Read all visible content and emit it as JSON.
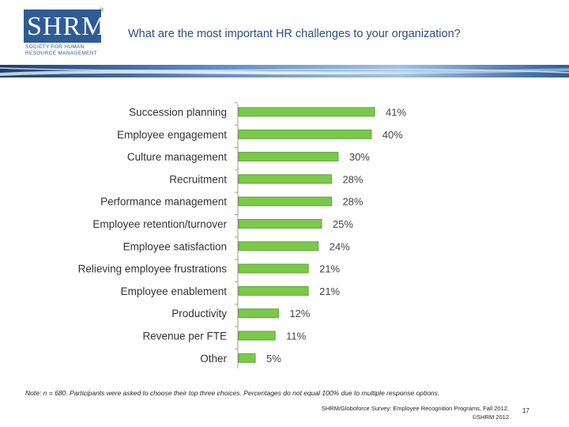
{
  "logo": {
    "letters": "SHRM",
    "registered": "®",
    "tagline": "SOCIETY FOR HUMAN\nRESOURCE MANAGEMENT"
  },
  "title": "What are the most important HR challenges to your organization?",
  "colors": {
    "bar": "#7cc84a",
    "bar_dark": "#5aa832",
    "title": "#2a4e86",
    "brand": "#2f5c94"
  },
  "chart_data": {
    "type": "bar",
    "orientation": "horizontal",
    "title": "",
    "xlabel": "",
    "ylabel": "",
    "xlim": [
      0,
      45
    ],
    "grid": false,
    "categories": [
      "Succession planning",
      "Employee engagement",
      "Culture management",
      "Recruitment",
      "Performance management",
      "Employee retention/turnover",
      "Employee satisfaction",
      "Relieving employee frustrations",
      "Employee enablement",
      "Productivity",
      "Revenue per FTE",
      "Other"
    ],
    "values": [
      41,
      40,
      30,
      28,
      28,
      25,
      24,
      21,
      21,
      12,
      11,
      5
    ],
    "value_labels": [
      "41%",
      "40%",
      "30%",
      "28%",
      "28%",
      "25%",
      "24%",
      "21%",
      "21%",
      "12%",
      "11%",
      "5%"
    ]
  },
  "note": "Note: n = 680. Participants were asked to choose their top three choices. Percentages do not equal 100% due to multiple response options.",
  "source": {
    "line1": "SHRM/Globoforce Survey: Employee Recognition Programs, Fall 2012.",
    "line2": "©SHRM 2012"
  },
  "page_number": "17"
}
